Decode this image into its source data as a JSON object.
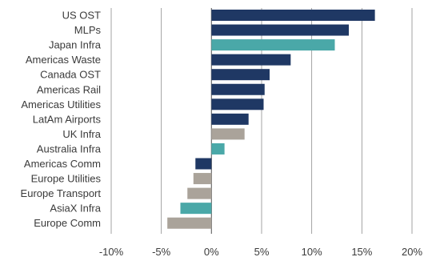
{
  "chart_data": {
    "type": "bar",
    "orientation": "horizontal",
    "title": "",
    "xlabel": "",
    "ylabel": "",
    "xlim": [
      -10,
      20
    ],
    "x_ticks": [
      -10,
      -5,
      0,
      5,
      10,
      15,
      20
    ],
    "x_tick_labels": [
      "-10%",
      "-5%",
      "0%",
      "5%",
      "10%",
      "15%",
      "20%"
    ],
    "grid": "vertical",
    "legend": "none",
    "categories": [
      "US OST",
      "MLPs",
      "Japan Infra",
      "Americas Waste",
      "Canada OST",
      "Americas Rail",
      "Americas Utilities",
      "LatAm Airports",
      "UK Infra",
      "Australia Infra",
      "Americas Comm",
      "Europe Utilities",
      "Europe Transport",
      "AsiaX Infra",
      "Europe Comm"
    ],
    "values": [
      16.3,
      13.7,
      12.3,
      7.9,
      5.8,
      5.3,
      5.2,
      3.7,
      3.3,
      1.3,
      -1.6,
      -1.8,
      -2.4,
      -3.1,
      -4.4
    ],
    "bar_colors": [
      "#1f3864",
      "#1f3864",
      "#4aa8a8",
      "#1f3864",
      "#1f3864",
      "#1f3864",
      "#1f3864",
      "#1f3864",
      "#aaa39a",
      "#4aa8a8",
      "#1f3864",
      "#aaa39a",
      "#aaa39a",
      "#4aa8a8",
      "#aaa39a"
    ]
  },
  "colors": {
    "navy": "#1f3864",
    "teal": "#4aa8a8",
    "taupe": "#aaa39a",
    "grid": "#8c8c8c",
    "text": "#3a3a3a"
  }
}
